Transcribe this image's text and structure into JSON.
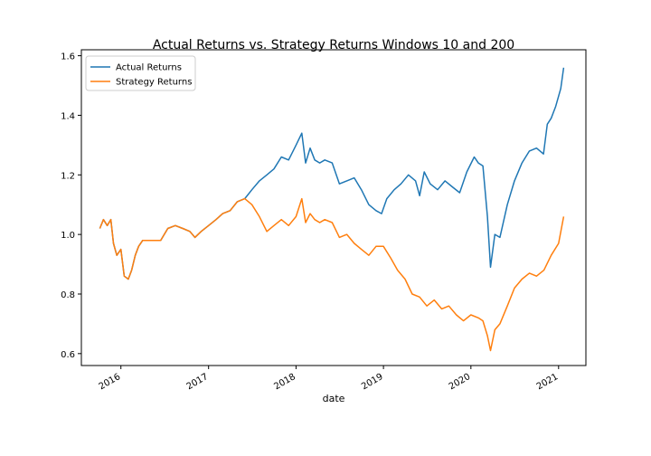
{
  "chart_data": {
    "type": "line",
    "title": "Actual Returns vs. Strategy Returns Windows 10 and 200",
    "xlabel": "date",
    "ylabel": "",
    "x_ticks": [
      "2016",
      "2017",
      "2018",
      "2019",
      "2020",
      "2021"
    ],
    "y_ticks": [
      "0.6",
      "0.8",
      "1.0",
      "1.2",
      "1.4",
      "1.6"
    ],
    "xlim": [
      "2015-07-20",
      "2021-04-25"
    ],
    "ylim": [
      0.56,
      1.62
    ],
    "grid": false,
    "legend_position": "top-left",
    "series": [
      {
        "name": "Actual Returns",
        "color": "#1f77b4",
        "points": [
          [
            "2015-10-05",
            1.02
          ],
          [
            "2015-10-20",
            1.05
          ],
          [
            "2015-11-05",
            1.03
          ],
          [
            "2015-11-20",
            1.05
          ],
          [
            "2015-12-01",
            0.97
          ],
          [
            "2015-12-15",
            0.93
          ],
          [
            "2016-01-01",
            0.95
          ],
          [
            "2016-01-15",
            0.86
          ],
          [
            "2016-02-01",
            0.85
          ],
          [
            "2016-02-15",
            0.88
          ],
          [
            "2016-03-01",
            0.93
          ],
          [
            "2016-03-15",
            0.96
          ],
          [
            "2016-04-01",
            0.98
          ],
          [
            "2016-05-01",
            0.98
          ],
          [
            "2016-06-15",
            0.98
          ],
          [
            "2016-07-15",
            1.02
          ],
          [
            "2016-08-15",
            1.03
          ],
          [
            "2016-09-15",
            1.02
          ],
          [
            "2016-10-15",
            1.01
          ],
          [
            "2016-11-05",
            0.99
          ],
          [
            "2016-12-01",
            1.01
          ],
          [
            "2017-01-01",
            1.03
          ],
          [
            "2017-02-01",
            1.05
          ],
          [
            "2017-03-01",
            1.07
          ],
          [
            "2017-04-01",
            1.08
          ],
          [
            "2017-05-01",
            1.11
          ],
          [
            "2017-06-01",
            1.12
          ],
          [
            "2017-07-01",
            1.15
          ],
          [
            "2017-08-01",
            1.18
          ],
          [
            "2017-09-01",
            1.2
          ],
          [
            "2017-10-01",
            1.22
          ],
          [
            "2017-11-01",
            1.26
          ],
          [
            "2017-12-01",
            1.25
          ],
          [
            "2018-01-01",
            1.3
          ],
          [
            "2018-01-25",
            1.34
          ],
          [
            "2018-02-10",
            1.24
          ],
          [
            "2018-03-01",
            1.29
          ],
          [
            "2018-03-20",
            1.25
          ],
          [
            "2018-04-10",
            1.24
          ],
          [
            "2018-05-01",
            1.25
          ],
          [
            "2018-06-01",
            1.24
          ],
          [
            "2018-07-01",
            1.17
          ],
          [
            "2018-08-01",
            1.18
          ],
          [
            "2018-09-01",
            1.19
          ],
          [
            "2018-10-01",
            1.15
          ],
          [
            "2018-11-01",
            1.1
          ],
          [
            "2018-12-01",
            1.08
          ],
          [
            "2018-12-24",
            1.07
          ],
          [
            "2019-01-15",
            1.12
          ],
          [
            "2019-02-15",
            1.15
          ],
          [
            "2019-03-15",
            1.17
          ],
          [
            "2019-04-15",
            1.2
          ],
          [
            "2019-05-15",
            1.18
          ],
          [
            "2019-06-01",
            1.13
          ],
          [
            "2019-06-20",
            1.21
          ],
          [
            "2019-07-15",
            1.17
          ],
          [
            "2019-08-15",
            1.15
          ],
          [
            "2019-09-15",
            1.18
          ],
          [
            "2019-10-15",
            1.16
          ],
          [
            "2019-11-15",
            1.14
          ],
          [
            "2019-12-15",
            1.21
          ],
          [
            "2020-01-15",
            1.26
          ],
          [
            "2020-02-01",
            1.24
          ],
          [
            "2020-02-20",
            1.23
          ],
          [
            "2020-03-10",
            1.06
          ],
          [
            "2020-03-23",
            0.89
          ],
          [
            "2020-04-10",
            1.0
          ],
          [
            "2020-05-01",
            0.99
          ],
          [
            "2020-06-01",
            1.1
          ],
          [
            "2020-07-01",
            1.18
          ],
          [
            "2020-08-01",
            1.24
          ],
          [
            "2020-09-01",
            1.28
          ],
          [
            "2020-10-01",
            1.29
          ],
          [
            "2020-10-30",
            1.27
          ],
          [
            "2020-11-15",
            1.37
          ],
          [
            "2020-12-01",
            1.39
          ],
          [
            "2020-12-20",
            1.43
          ],
          [
            "2021-01-10",
            1.49
          ],
          [
            "2021-01-22",
            1.56
          ]
        ]
      },
      {
        "name": "Strategy Returns",
        "color": "#ff7f0e",
        "points": [
          [
            "2015-10-05",
            1.02
          ],
          [
            "2015-10-20",
            1.05
          ],
          [
            "2015-11-05",
            1.03
          ],
          [
            "2015-11-20",
            1.05
          ],
          [
            "2015-12-01",
            0.97
          ],
          [
            "2015-12-15",
            0.93
          ],
          [
            "2016-01-01",
            0.95
          ],
          [
            "2016-01-15",
            0.86
          ],
          [
            "2016-02-01",
            0.85
          ],
          [
            "2016-02-15",
            0.88
          ],
          [
            "2016-03-01",
            0.93
          ],
          [
            "2016-03-15",
            0.96
          ],
          [
            "2016-04-01",
            0.98
          ],
          [
            "2016-05-01",
            0.98
          ],
          [
            "2016-06-15",
            0.98
          ],
          [
            "2016-07-15",
            1.02
          ],
          [
            "2016-08-15",
            1.03
          ],
          [
            "2016-09-15",
            1.02
          ],
          [
            "2016-10-15",
            1.01
          ],
          [
            "2016-11-05",
            0.99
          ],
          [
            "2016-12-01",
            1.01
          ],
          [
            "2017-01-01",
            1.03
          ],
          [
            "2017-02-01",
            1.05
          ],
          [
            "2017-03-01",
            1.07
          ],
          [
            "2017-04-01",
            1.08
          ],
          [
            "2017-05-01",
            1.11
          ],
          [
            "2017-06-01",
            1.12
          ],
          [
            "2017-07-01",
            1.1
          ],
          [
            "2017-08-01",
            1.06
          ],
          [
            "2017-09-01",
            1.01
          ],
          [
            "2017-10-01",
            1.03
          ],
          [
            "2017-11-01",
            1.05
          ],
          [
            "2017-12-01",
            1.03
          ],
          [
            "2018-01-01",
            1.06
          ],
          [
            "2018-01-25",
            1.12
          ],
          [
            "2018-02-10",
            1.04
          ],
          [
            "2018-03-01",
            1.07
          ],
          [
            "2018-03-20",
            1.05
          ],
          [
            "2018-04-10",
            1.04
          ],
          [
            "2018-05-01",
            1.05
          ],
          [
            "2018-06-01",
            1.04
          ],
          [
            "2018-07-01",
            0.99
          ],
          [
            "2018-08-01",
            1.0
          ],
          [
            "2018-09-01",
            0.97
          ],
          [
            "2018-10-01",
            0.95
          ],
          [
            "2018-11-01",
            0.93
          ],
          [
            "2018-12-01",
            0.96
          ],
          [
            "2019-01-01",
            0.96
          ],
          [
            "2019-02-01",
            0.92
          ],
          [
            "2019-03-01",
            0.88
          ],
          [
            "2019-04-01",
            0.85
          ],
          [
            "2019-05-01",
            0.8
          ],
          [
            "2019-06-01",
            0.79
          ],
          [
            "2019-07-01",
            0.76
          ],
          [
            "2019-08-01",
            0.78
          ],
          [
            "2019-09-01",
            0.75
          ],
          [
            "2019-10-01",
            0.76
          ],
          [
            "2019-11-01",
            0.73
          ],
          [
            "2019-12-01",
            0.71
          ],
          [
            "2020-01-01",
            0.73
          ],
          [
            "2020-02-01",
            0.72
          ],
          [
            "2020-02-20",
            0.71
          ],
          [
            "2020-03-10",
            0.66
          ],
          [
            "2020-03-23",
            0.61
          ],
          [
            "2020-04-10",
            0.68
          ],
          [
            "2020-05-01",
            0.7
          ],
          [
            "2020-06-01",
            0.76
          ],
          [
            "2020-07-01",
            0.82
          ],
          [
            "2020-08-01",
            0.85
          ],
          [
            "2020-09-01",
            0.87
          ],
          [
            "2020-10-01",
            0.86
          ],
          [
            "2020-11-01",
            0.88
          ],
          [
            "2020-12-01",
            0.93
          ],
          [
            "2021-01-01",
            0.97
          ],
          [
            "2021-01-22",
            1.06
          ]
        ]
      }
    ]
  }
}
